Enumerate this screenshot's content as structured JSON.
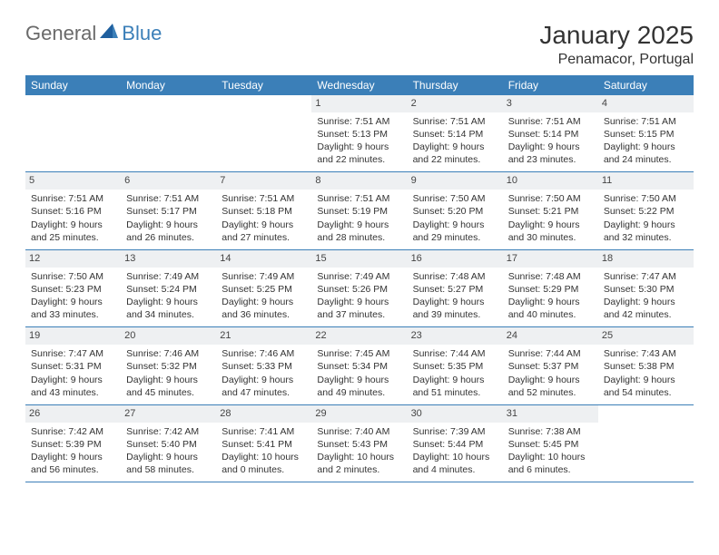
{
  "brand": {
    "part1": "General",
    "part2": "Blue"
  },
  "title": {
    "month": "January 2025",
    "location": "Penamacor, Portugal"
  },
  "colors": {
    "header_bg": "#3b7fb8",
    "header_text": "#ffffff",
    "daynum_bg": "#eef0f2",
    "text": "#333333",
    "rule": "#3b7fb8"
  },
  "weekdays": [
    "Sunday",
    "Monday",
    "Tuesday",
    "Wednesday",
    "Thursday",
    "Friday",
    "Saturday"
  ],
  "weeks": [
    [
      {
        "n": "",
        "sr": "",
        "ss": "",
        "dl1": "",
        "dl2": ""
      },
      {
        "n": "",
        "sr": "",
        "ss": "",
        "dl1": "",
        "dl2": ""
      },
      {
        "n": "",
        "sr": "",
        "ss": "",
        "dl1": "",
        "dl2": ""
      },
      {
        "n": "1",
        "sr": "Sunrise: 7:51 AM",
        "ss": "Sunset: 5:13 PM",
        "dl1": "Daylight: 9 hours",
        "dl2": "and 22 minutes."
      },
      {
        "n": "2",
        "sr": "Sunrise: 7:51 AM",
        "ss": "Sunset: 5:14 PM",
        "dl1": "Daylight: 9 hours",
        "dl2": "and 22 minutes."
      },
      {
        "n": "3",
        "sr": "Sunrise: 7:51 AM",
        "ss": "Sunset: 5:14 PM",
        "dl1": "Daylight: 9 hours",
        "dl2": "and 23 minutes."
      },
      {
        "n": "4",
        "sr": "Sunrise: 7:51 AM",
        "ss": "Sunset: 5:15 PM",
        "dl1": "Daylight: 9 hours",
        "dl2": "and 24 minutes."
      }
    ],
    [
      {
        "n": "5",
        "sr": "Sunrise: 7:51 AM",
        "ss": "Sunset: 5:16 PM",
        "dl1": "Daylight: 9 hours",
        "dl2": "and 25 minutes."
      },
      {
        "n": "6",
        "sr": "Sunrise: 7:51 AM",
        "ss": "Sunset: 5:17 PM",
        "dl1": "Daylight: 9 hours",
        "dl2": "and 26 minutes."
      },
      {
        "n": "7",
        "sr": "Sunrise: 7:51 AM",
        "ss": "Sunset: 5:18 PM",
        "dl1": "Daylight: 9 hours",
        "dl2": "and 27 minutes."
      },
      {
        "n": "8",
        "sr": "Sunrise: 7:51 AM",
        "ss": "Sunset: 5:19 PM",
        "dl1": "Daylight: 9 hours",
        "dl2": "and 28 minutes."
      },
      {
        "n": "9",
        "sr": "Sunrise: 7:50 AM",
        "ss": "Sunset: 5:20 PM",
        "dl1": "Daylight: 9 hours",
        "dl2": "and 29 minutes."
      },
      {
        "n": "10",
        "sr": "Sunrise: 7:50 AM",
        "ss": "Sunset: 5:21 PM",
        "dl1": "Daylight: 9 hours",
        "dl2": "and 30 minutes."
      },
      {
        "n": "11",
        "sr": "Sunrise: 7:50 AM",
        "ss": "Sunset: 5:22 PM",
        "dl1": "Daylight: 9 hours",
        "dl2": "and 32 minutes."
      }
    ],
    [
      {
        "n": "12",
        "sr": "Sunrise: 7:50 AM",
        "ss": "Sunset: 5:23 PM",
        "dl1": "Daylight: 9 hours",
        "dl2": "and 33 minutes."
      },
      {
        "n": "13",
        "sr": "Sunrise: 7:49 AM",
        "ss": "Sunset: 5:24 PM",
        "dl1": "Daylight: 9 hours",
        "dl2": "and 34 minutes."
      },
      {
        "n": "14",
        "sr": "Sunrise: 7:49 AM",
        "ss": "Sunset: 5:25 PM",
        "dl1": "Daylight: 9 hours",
        "dl2": "and 36 minutes."
      },
      {
        "n": "15",
        "sr": "Sunrise: 7:49 AM",
        "ss": "Sunset: 5:26 PM",
        "dl1": "Daylight: 9 hours",
        "dl2": "and 37 minutes."
      },
      {
        "n": "16",
        "sr": "Sunrise: 7:48 AM",
        "ss": "Sunset: 5:27 PM",
        "dl1": "Daylight: 9 hours",
        "dl2": "and 39 minutes."
      },
      {
        "n": "17",
        "sr": "Sunrise: 7:48 AM",
        "ss": "Sunset: 5:29 PM",
        "dl1": "Daylight: 9 hours",
        "dl2": "and 40 minutes."
      },
      {
        "n": "18",
        "sr": "Sunrise: 7:47 AM",
        "ss": "Sunset: 5:30 PM",
        "dl1": "Daylight: 9 hours",
        "dl2": "and 42 minutes."
      }
    ],
    [
      {
        "n": "19",
        "sr": "Sunrise: 7:47 AM",
        "ss": "Sunset: 5:31 PM",
        "dl1": "Daylight: 9 hours",
        "dl2": "and 43 minutes."
      },
      {
        "n": "20",
        "sr": "Sunrise: 7:46 AM",
        "ss": "Sunset: 5:32 PM",
        "dl1": "Daylight: 9 hours",
        "dl2": "and 45 minutes."
      },
      {
        "n": "21",
        "sr": "Sunrise: 7:46 AM",
        "ss": "Sunset: 5:33 PM",
        "dl1": "Daylight: 9 hours",
        "dl2": "and 47 minutes."
      },
      {
        "n": "22",
        "sr": "Sunrise: 7:45 AM",
        "ss": "Sunset: 5:34 PM",
        "dl1": "Daylight: 9 hours",
        "dl2": "and 49 minutes."
      },
      {
        "n": "23",
        "sr": "Sunrise: 7:44 AM",
        "ss": "Sunset: 5:35 PM",
        "dl1": "Daylight: 9 hours",
        "dl2": "and 51 minutes."
      },
      {
        "n": "24",
        "sr": "Sunrise: 7:44 AM",
        "ss": "Sunset: 5:37 PM",
        "dl1": "Daylight: 9 hours",
        "dl2": "and 52 minutes."
      },
      {
        "n": "25",
        "sr": "Sunrise: 7:43 AM",
        "ss": "Sunset: 5:38 PM",
        "dl1": "Daylight: 9 hours",
        "dl2": "and 54 minutes."
      }
    ],
    [
      {
        "n": "26",
        "sr": "Sunrise: 7:42 AM",
        "ss": "Sunset: 5:39 PM",
        "dl1": "Daylight: 9 hours",
        "dl2": "and 56 minutes."
      },
      {
        "n": "27",
        "sr": "Sunrise: 7:42 AM",
        "ss": "Sunset: 5:40 PM",
        "dl1": "Daylight: 9 hours",
        "dl2": "and 58 minutes."
      },
      {
        "n": "28",
        "sr": "Sunrise: 7:41 AM",
        "ss": "Sunset: 5:41 PM",
        "dl1": "Daylight: 10 hours",
        "dl2": "and 0 minutes."
      },
      {
        "n": "29",
        "sr": "Sunrise: 7:40 AM",
        "ss": "Sunset: 5:43 PM",
        "dl1": "Daylight: 10 hours",
        "dl2": "and 2 minutes."
      },
      {
        "n": "30",
        "sr": "Sunrise: 7:39 AM",
        "ss": "Sunset: 5:44 PM",
        "dl1": "Daylight: 10 hours",
        "dl2": "and 4 minutes."
      },
      {
        "n": "31",
        "sr": "Sunrise: 7:38 AM",
        "ss": "Sunset: 5:45 PM",
        "dl1": "Daylight: 10 hours",
        "dl2": "and 6 minutes."
      },
      {
        "n": "",
        "sr": "",
        "ss": "",
        "dl1": "",
        "dl2": ""
      }
    ]
  ]
}
